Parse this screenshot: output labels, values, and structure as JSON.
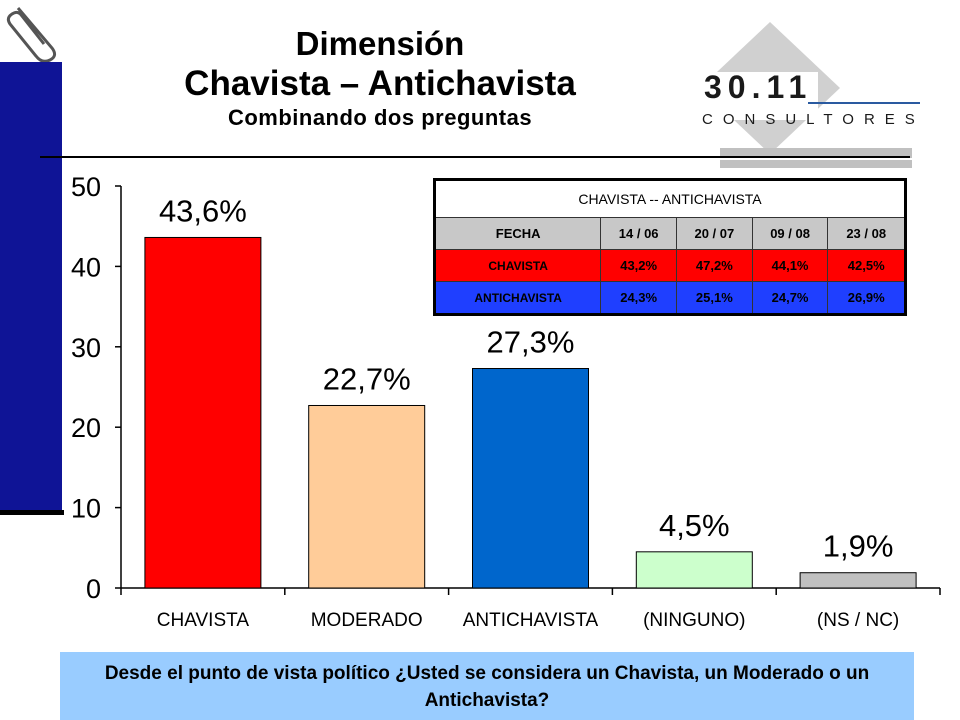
{
  "title": {
    "line1": "Dimensión",
    "line2": "Chavista – Antichavista",
    "line3": "Combinando dos preguntas"
  },
  "logo": {
    "number": "30.11",
    "word": "CONSULTORES"
  },
  "question": "Desde el punto de vista político ¿Usted se considera un Chavista, un Moderado o un Antichavista?",
  "table": {
    "caption": "CHAVISTA -- ANTICHAVISTA",
    "header_label": "FECHA",
    "dates": [
      "14 / 06",
      "20 / 07",
      "09 / 08",
      "23 / 08"
    ],
    "rows": [
      {
        "label": "CHAVISTA",
        "values": [
          "43,2%",
          "47,2%",
          "44,1%",
          "42,5%"
        ]
      },
      {
        "label": "ANTICHAVISTA",
        "values": [
          "24,3%",
          "25,1%",
          "24,7%",
          "26,9%"
        ]
      }
    ]
  },
  "chart_data": {
    "type": "bar",
    "title": "",
    "xlabel": "",
    "ylabel": "",
    "ylim": [
      0,
      50
    ],
    "yticks": [
      0,
      10,
      20,
      30,
      40,
      50
    ],
    "grid": false,
    "categories": [
      "CHAVISTA",
      "MODERADO",
      "ANTICHAVISTA",
      "(NINGUNO)",
      "(NS / NC)"
    ],
    "values": [
      43.6,
      22.7,
      27.3,
      4.5,
      1.9
    ],
    "labels": [
      "43,6%",
      "22,7%",
      "27,3%",
      "4,5%",
      "1,9%"
    ],
    "colors": [
      "#ff0000",
      "#ffcc99",
      "#0066cc",
      "#ccffcc",
      "#c0c0c0"
    ]
  }
}
